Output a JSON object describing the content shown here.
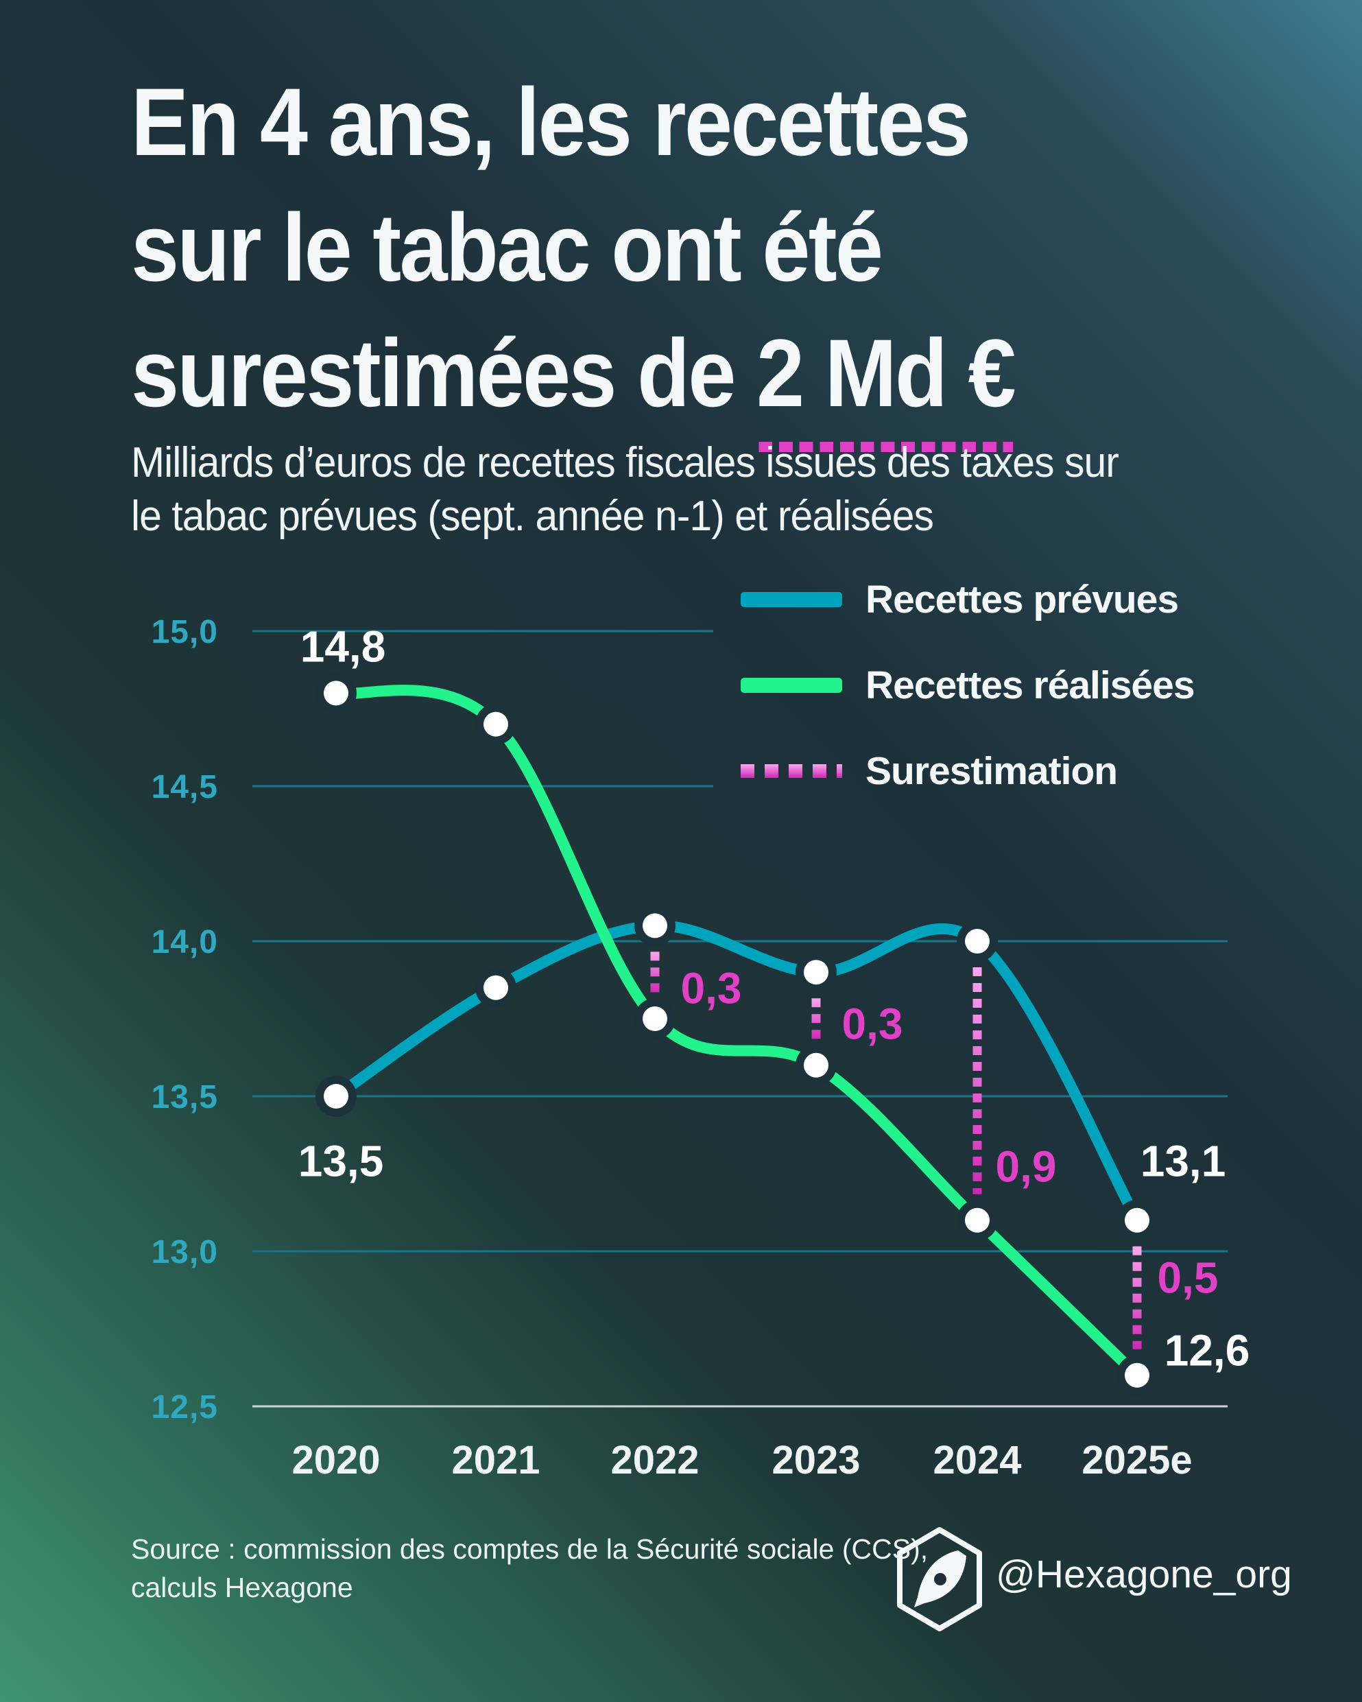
{
  "title": {
    "line1": "En 4 ans, les recettes",
    "line2": "sur le tabac ont été",
    "line3_pre": "surestimées de ",
    "line3_em": "2 Md €"
  },
  "subtitle": {
    "line1": "Milliards d’euros de recettes fiscales issues des taxes sur",
    "line2": "le tabac prévues (sept. année n-1) et réalisées"
  },
  "legend": {
    "items": [
      {
        "label": "Recettes prévues",
        "swatch": "teal-line",
        "color": "#00a4bd"
      },
      {
        "label": "Recettes réalisées",
        "swatch": "green-line",
        "color": "#23f38c"
      },
      {
        "label": "Surestimation",
        "swatch": "magenta-dotted",
        "color": "#e041c6"
      }
    ]
  },
  "footer": {
    "source_line1": "Source : commission des comptes de la Sécurité sociale (CCS),",
    "source_line2": "calculs Hexagone",
    "handle": "@Hexagone_org",
    "logo": "hexagon-pen-nib-icon"
  },
  "chart_data": {
    "type": "line",
    "title": "En 4 ans, les recettes sur le tabac ont été surestimées de 2 Md €",
    "xlabel": "",
    "ylabel": "Milliards d’euros de recettes fiscales sur le tabac",
    "categories": [
      "2020",
      "2021",
      "2022",
      "2023",
      "2024",
      "2025e"
    ],
    "series": [
      {
        "name": "Recettes prévues",
        "color": "#00a4bd",
        "values": [
          13.5,
          13.85,
          14.05,
          13.9,
          14.0,
          13.1
        ]
      },
      {
        "name": "Recettes réalisées",
        "color": "#23f38c",
        "values": [
          14.8,
          14.7,
          13.75,
          13.6,
          13.1,
          12.6
        ]
      }
    ],
    "overestimation": {
      "name": "Surestimation",
      "color_top": "#f9a6ef",
      "color_bottom": "#cf28b4",
      "label_color": "#e041c6",
      "entries": [
        {
          "category": "2022",
          "value": 0.3,
          "label": "0,3",
          "label_x": 1037,
          "label_y": 1440
        },
        {
          "category": "2023",
          "value": 0.3,
          "label": "0,3",
          "label_x": 1272,
          "label_y": 1492
        },
        {
          "category": "2024",
          "value": 0.9,
          "label": "0,9",
          "label_x": 1496,
          "label_y": 1700
        },
        {
          "category": "2025e",
          "value": 0.5,
          "label": "0,5",
          "label_x": 1732,
          "label_y": 1862
        }
      ]
    },
    "point_labels": [
      {
        "text": "14,8",
        "x": 500,
        "y": 942
      },
      {
        "text": "13,5",
        "x": 497,
        "y": 1692
      },
      {
        "text": "13,1",
        "x": 1725,
        "y": 1692
      },
      {
        "text": "12,6",
        "x": 1760,
        "y": 1968
      }
    ],
    "y_axis": {
      "range": [
        12.5,
        15.0
      ],
      "tick_color": "#2fa8c0",
      "ticks": [
        {
          "value": 15.0,
          "label": "15,0",
          "grid_end": 1040
        },
        {
          "value": 14.5,
          "label": "14,5",
          "grid_end": 1040
        },
        {
          "value": 14.0,
          "label": "14,0",
          "grid_end": 1790
        },
        {
          "value": 13.5,
          "label": "13,5",
          "grid_end": 1790
        },
        {
          "value": 13.0,
          "label": "13,0",
          "grid_end": 1790
        },
        {
          "value": 12.5,
          "label": "12,5",
          "grid_end": 1790
        }
      ]
    },
    "x_axis": {
      "labels": [
        "2020",
        "2021",
        "2022",
        "2023",
        "2024",
        "2025e"
      ],
      "color": "#eef3f3"
    },
    "grid": true,
    "legend_position": "top-right",
    "layout": {
      "x_positions": [
        490,
        723,
        955,
        1190,
        1425,
        1658
      ],
      "y_top": 920,
      "v_top": 15.0,
      "y_per_unit": 452,
      "grid_start": 368,
      "label_right": 318,
      "x_label_baseline": 2148,
      "grid_color": "#19758a",
      "baseline_color": "#ccd6d9",
      "baseline_value": 12.5,
      "line_width": 16,
      "point_radius": 18,
      "halo_radius": 30,
      "halo_color": "#1c333b",
      "dot_width": 13,
      "dot_dash": "13 10",
      "dot_inset": 38,
      "tick_font": 48,
      "x_font": 58,
      "label_font": 64
    }
  }
}
